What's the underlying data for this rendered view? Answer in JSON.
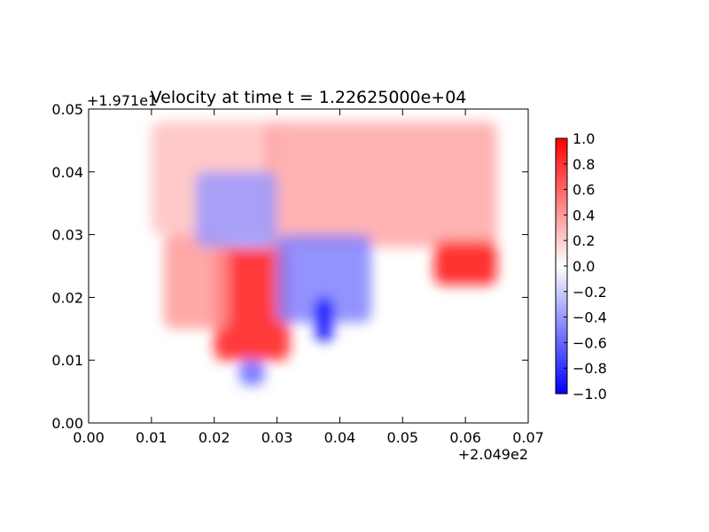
{
  "chart_data": {
    "type": "heatmap",
    "title": "Velocity at time t = 1.22625000e+04",
    "xlabel": "",
    "ylabel": "",
    "xlim": [
      0.0,
      0.07
    ],
    "ylim": [
      0.0,
      0.05
    ],
    "x_ticks": [
      "0.00",
      "0.01",
      "0.02",
      "0.03",
      "0.04",
      "0.05",
      "0.06",
      "0.07"
    ],
    "y_ticks": [
      "0.00",
      "0.01",
      "0.02",
      "0.03",
      "0.04",
      "0.05"
    ],
    "x_offset_label": "+2.049e2",
    "y_offset_label": "+1.971e1",
    "colormap": "bwr",
    "colormap_colors": [
      "#0000ff",
      "#ffffff",
      "#ff0000"
    ],
    "clim": [
      -1.0,
      1.0
    ],
    "colorbar_ticks": [
      "−1.0",
      "−0.8",
      "−0.6",
      "−0.4",
      "−0.2",
      "0.0",
      "0.2",
      "0.4",
      "0.6",
      "0.8",
      "1.0"
    ],
    "field_regions": [
      {
        "x": [
          0.01,
          0.03
        ],
        "y": [
          0.03,
          0.048
        ],
        "value": 0.25
      },
      {
        "x": [
          0.028,
          0.065
        ],
        "y": [
          0.028,
          0.048
        ],
        "value": 0.35
      },
      {
        "x": [
          0.02,
          0.032
        ],
        "y": [
          0.01,
          0.028
        ],
        "value": 0.9
      },
      {
        "x": [
          0.012,
          0.022
        ],
        "y": [
          0.015,
          0.03
        ],
        "value": 0.4
      },
      {
        "x": [
          0.017,
          0.03
        ],
        "y": [
          0.028,
          0.04
        ],
        "value": -0.4
      },
      {
        "x": [
          0.03,
          0.045
        ],
        "y": [
          0.016,
          0.03
        ],
        "value": -0.5
      },
      {
        "x": [
          0.036,
          0.039
        ],
        "y": [
          0.013,
          0.02
        ],
        "value": -1.0
      },
      {
        "x": [
          0.024,
          0.028
        ],
        "y": [
          0.006,
          0.01
        ],
        "value": -0.6
      },
      {
        "x": [
          0.055,
          0.065
        ],
        "y": [
          0.022,
          0.029
        ],
        "value": 0.95
      }
    ]
  }
}
